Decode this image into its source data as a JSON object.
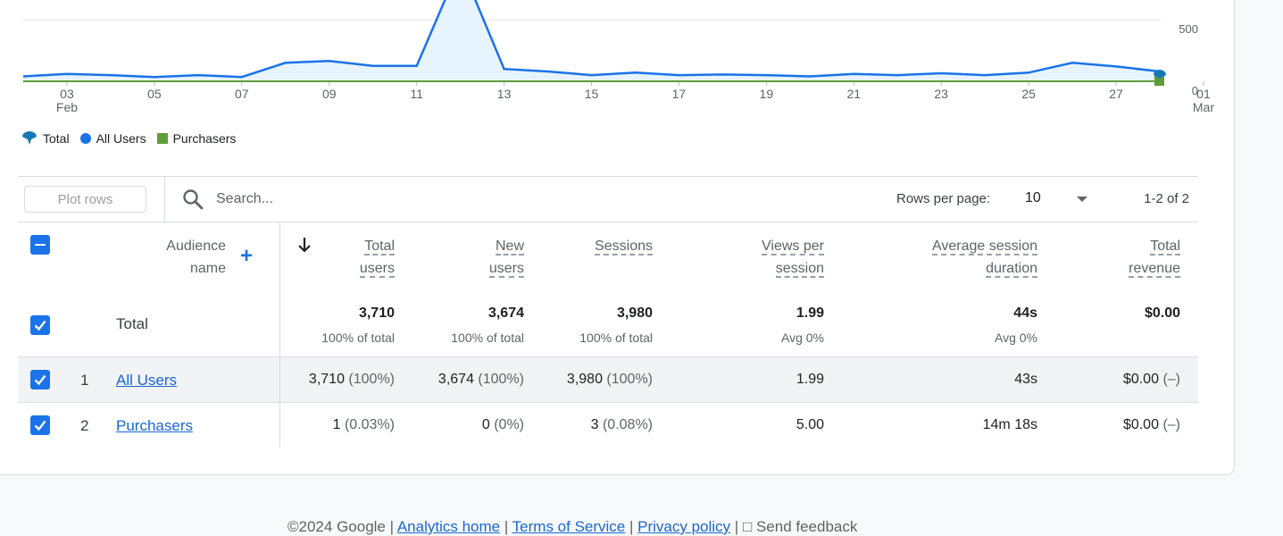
{
  "chart_data": {
    "type": "line",
    "x_tick_labels": [
      "03",
      "05",
      "07",
      "09",
      "11",
      "13",
      "15",
      "17",
      "19",
      "21",
      "23",
      "25",
      "27",
      "01"
    ],
    "x_month_labels": [
      {
        "day": "03",
        "month": "Feb"
      },
      {
        "day": "01",
        "month": "Mar"
      }
    ],
    "y_tick_labels": [
      "500",
      "0"
    ],
    "series": [
      {
        "name": "All Users",
        "color": "#1a73e8",
        "values": [
          40,
          60,
          50,
          35,
          50,
          35,
          150,
          165,
          125,
          125,
          950,
          100,
          80,
          50,
          70,
          50,
          55,
          50,
          40,
          60,
          50,
          65,
          50,
          70,
          150,
          120,
          80
        ]
      },
      {
        "name": "Purchasers",
        "color": "#5e9e3a",
        "values": [
          0,
          0,
          0,
          0,
          0,
          0,
          0,
          0,
          0,
          0,
          0,
          0,
          0,
          0,
          0,
          0,
          0,
          0,
          0,
          0,
          0,
          0,
          0,
          0,
          0,
          0,
          1
        ]
      }
    ]
  },
  "legend": {
    "total": "Total",
    "all_users": "All Users",
    "purchasers": "Purchasers",
    "total_color": "#1579b6",
    "all_users_color": "#1a73e8",
    "purchasers_color": "#5e9e3a"
  },
  "toolbar": {
    "plot_rows_label": "Plot rows",
    "search_placeholder": "Search...",
    "rows_per_page_label": "Rows per page:",
    "rows_per_page_value": "10",
    "pagination": "1-2 of 2"
  },
  "table": {
    "headers": {
      "audience_name": [
        "Audience",
        "name"
      ],
      "total_users": [
        "Total",
        "users"
      ],
      "new_users": [
        "New",
        "users"
      ],
      "sessions": [
        "Sessions"
      ],
      "views_per_session": [
        "Views per",
        "session"
      ],
      "avg_session_duration": [
        "Average session",
        "duration"
      ],
      "total_revenue": [
        "Total",
        "revenue"
      ]
    },
    "total_row": {
      "label": "Total",
      "total_users": "3,710",
      "total_users_sub": "100% of total",
      "new_users": "3,674",
      "new_users_sub": "100% of total",
      "sessions": "3,980",
      "sessions_sub": "100% of total",
      "views_per_session": "1.99",
      "views_per_session_sub": "Avg 0%",
      "avg_session_duration": "44s",
      "avg_session_duration_sub": "Avg 0%",
      "total_revenue": "$0.00"
    },
    "rows": [
      {
        "index": "1",
        "name": "All Users",
        "total_users": "3,710",
        "total_users_pct": "(100%)",
        "new_users": "3,674",
        "new_users_pct": "(100%)",
        "sessions": "3,980",
        "sessions_pct": "(100%)",
        "views_per_session": "1.99",
        "avg_session_duration": "43s",
        "total_revenue": "$0.00",
        "total_revenue_pct": "(–)"
      },
      {
        "index": "2",
        "name": "Purchasers",
        "total_users": "1",
        "total_users_pct": "(0.03%)",
        "new_users": "0",
        "new_users_pct": "(0%)",
        "sessions": "3",
        "sessions_pct": "(0.08%)",
        "views_per_session": "5.00",
        "avg_session_duration": "14m 18s",
        "total_revenue": "$0.00",
        "total_revenue_pct": "(–)"
      }
    ]
  },
  "footer": {
    "copyright": "©2024 Google",
    "links": [
      "Analytics home",
      "Terms of Service",
      "Privacy policy"
    ],
    "feedback": "Send feedback"
  }
}
